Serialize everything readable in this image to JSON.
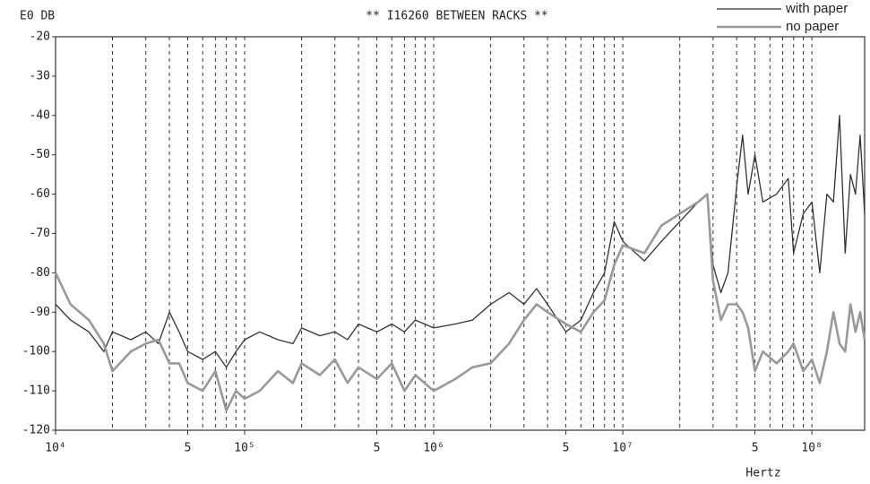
{
  "chart_data": {
    "type": "line",
    "title": "** I16260 BETWEEN RACKS **",
    "y_label": "E0 DB",
    "x_label": "Hertz",
    "x_log": true,
    "x": [
      10000,
      12000,
      15000,
      18000,
      20000,
      25000,
      30000,
      35000,
      40000,
      45000,
      50000,
      60000,
      70000,
      80000,
      90000,
      100000,
      120000,
      150000,
      180000,
      200000,
      250000,
      300000,
      350000,
      400000,
      500000,
      600000,
      700000,
      800000,
      1000000,
      1300000,
      1600000,
      2000000,
      2500000,
      3000000,
      3500000,
      4000000,
      5000000,
      6000000,
      7000000,
      8000000,
      9000000,
      10000000,
      13000000,
      16000000,
      20000000,
      25000000,
      28000000,
      30000000,
      33000000,
      36000000,
      40000000,
      43000000,
      46000000,
      50000000,
      55000000,
      65000000,
      75000000,
      80000000,
      90000000,
      100000000,
      110000000,
      120000000,
      130000000,
      140000000,
      150000000,
      160000000,
      170000000,
      180000000,
      190000000
    ],
    "series": [
      {
        "name": "with paper",
        "color": "#333333",
        "width": 1.3,
        "values": [
          -88,
          -92,
          -95,
          -100,
          -95,
          -97,
          -95,
          -98,
          -90,
          -95,
          -100,
          -102,
          -100,
          -104,
          -100,
          -97,
          -95,
          -97,
          -98,
          -94,
          -96,
          -95,
          -97,
          -93,
          -95,
          -93,
          -95,
          -92,
          -94,
          -93,
          -92,
          -88,
          -85,
          -88,
          -84,
          -88,
          -95,
          -92,
          -85,
          -80,
          -67,
          -72,
          -77,
          -72,
          -67,
          -62,
          -60,
          -78,
          -85,
          -80,
          -58,
          -45,
          -60,
          -50,
          -62,
          -60,
          -56,
          -75,
          -65,
          -62,
          -80,
          -60,
          -62,
          -40,
          -75,
          -55,
          -60,
          -45,
          -65
        ]
      },
      {
        "name": "no paper",
        "color": "#999999",
        "width": 2.6,
        "values": [
          -80,
          -88,
          -92,
          -98,
          -105,
          -100,
          -98,
          -97,
          -103,
          -103,
          -108,
          -110,
          -105,
          -115,
          -110,
          -112,
          -110,
          -105,
          -108,
          -103,
          -106,
          -102,
          -108,
          -104,
          -107,
          -103,
          -110,
          -106,
          -110,
          -107,
          -104,
          -103,
          -98,
          -92,
          -88,
          -90,
          -93,
          -95,
          -90,
          -87,
          -78,
          -73,
          -75,
          -68,
          -65,
          -62,
          -60,
          -82,
          -92,
          -88,
          -88,
          -90,
          -94,
          -105,
          -100,
          -103,
          -100,
          -98,
          -105,
          -102,
          -108,
          -100,
          -90,
          -98,
          -100,
          -88,
          -95,
          -90,
          -97
        ]
      }
    ],
    "xlim": [
      10000,
      190000000
    ],
    "ylim": [
      -120,
      -20
    ],
    "xticks": [
      {
        "value": 10000,
        "label": "10⁴"
      },
      {
        "value": 50000,
        "label": "5"
      },
      {
        "value": 100000,
        "label": "10⁵"
      },
      {
        "value": 500000,
        "label": "5"
      },
      {
        "value": 1000000,
        "label": "10⁶"
      },
      {
        "value": 5000000,
        "label": "5"
      },
      {
        "value": 10000000,
        "label": "10⁷"
      },
      {
        "value": 50000000,
        "label": "5"
      },
      {
        "value": 100000000,
        "label": "10⁸"
      }
    ],
    "yticks": [
      -20,
      -30,
      -40,
      -50,
      -60,
      -70,
      -80,
      -90,
      -100,
      -110,
      -120
    ],
    "xgrid": [
      20000,
      30000,
      40000,
      50000,
      60000,
      70000,
      80000,
      90000,
      100000,
      200000,
      300000,
      400000,
      500000,
      600000,
      700000,
      800000,
      900000,
      1000000,
      2000000,
      3000000,
      4000000,
      5000000,
      6000000,
      7000000,
      8000000,
      9000000,
      10000000,
      20000000,
      30000000,
      40000000,
      50000000,
      60000000,
      70000000,
      80000000,
      90000000,
      100000000
    ],
    "legend": "top-right"
  }
}
